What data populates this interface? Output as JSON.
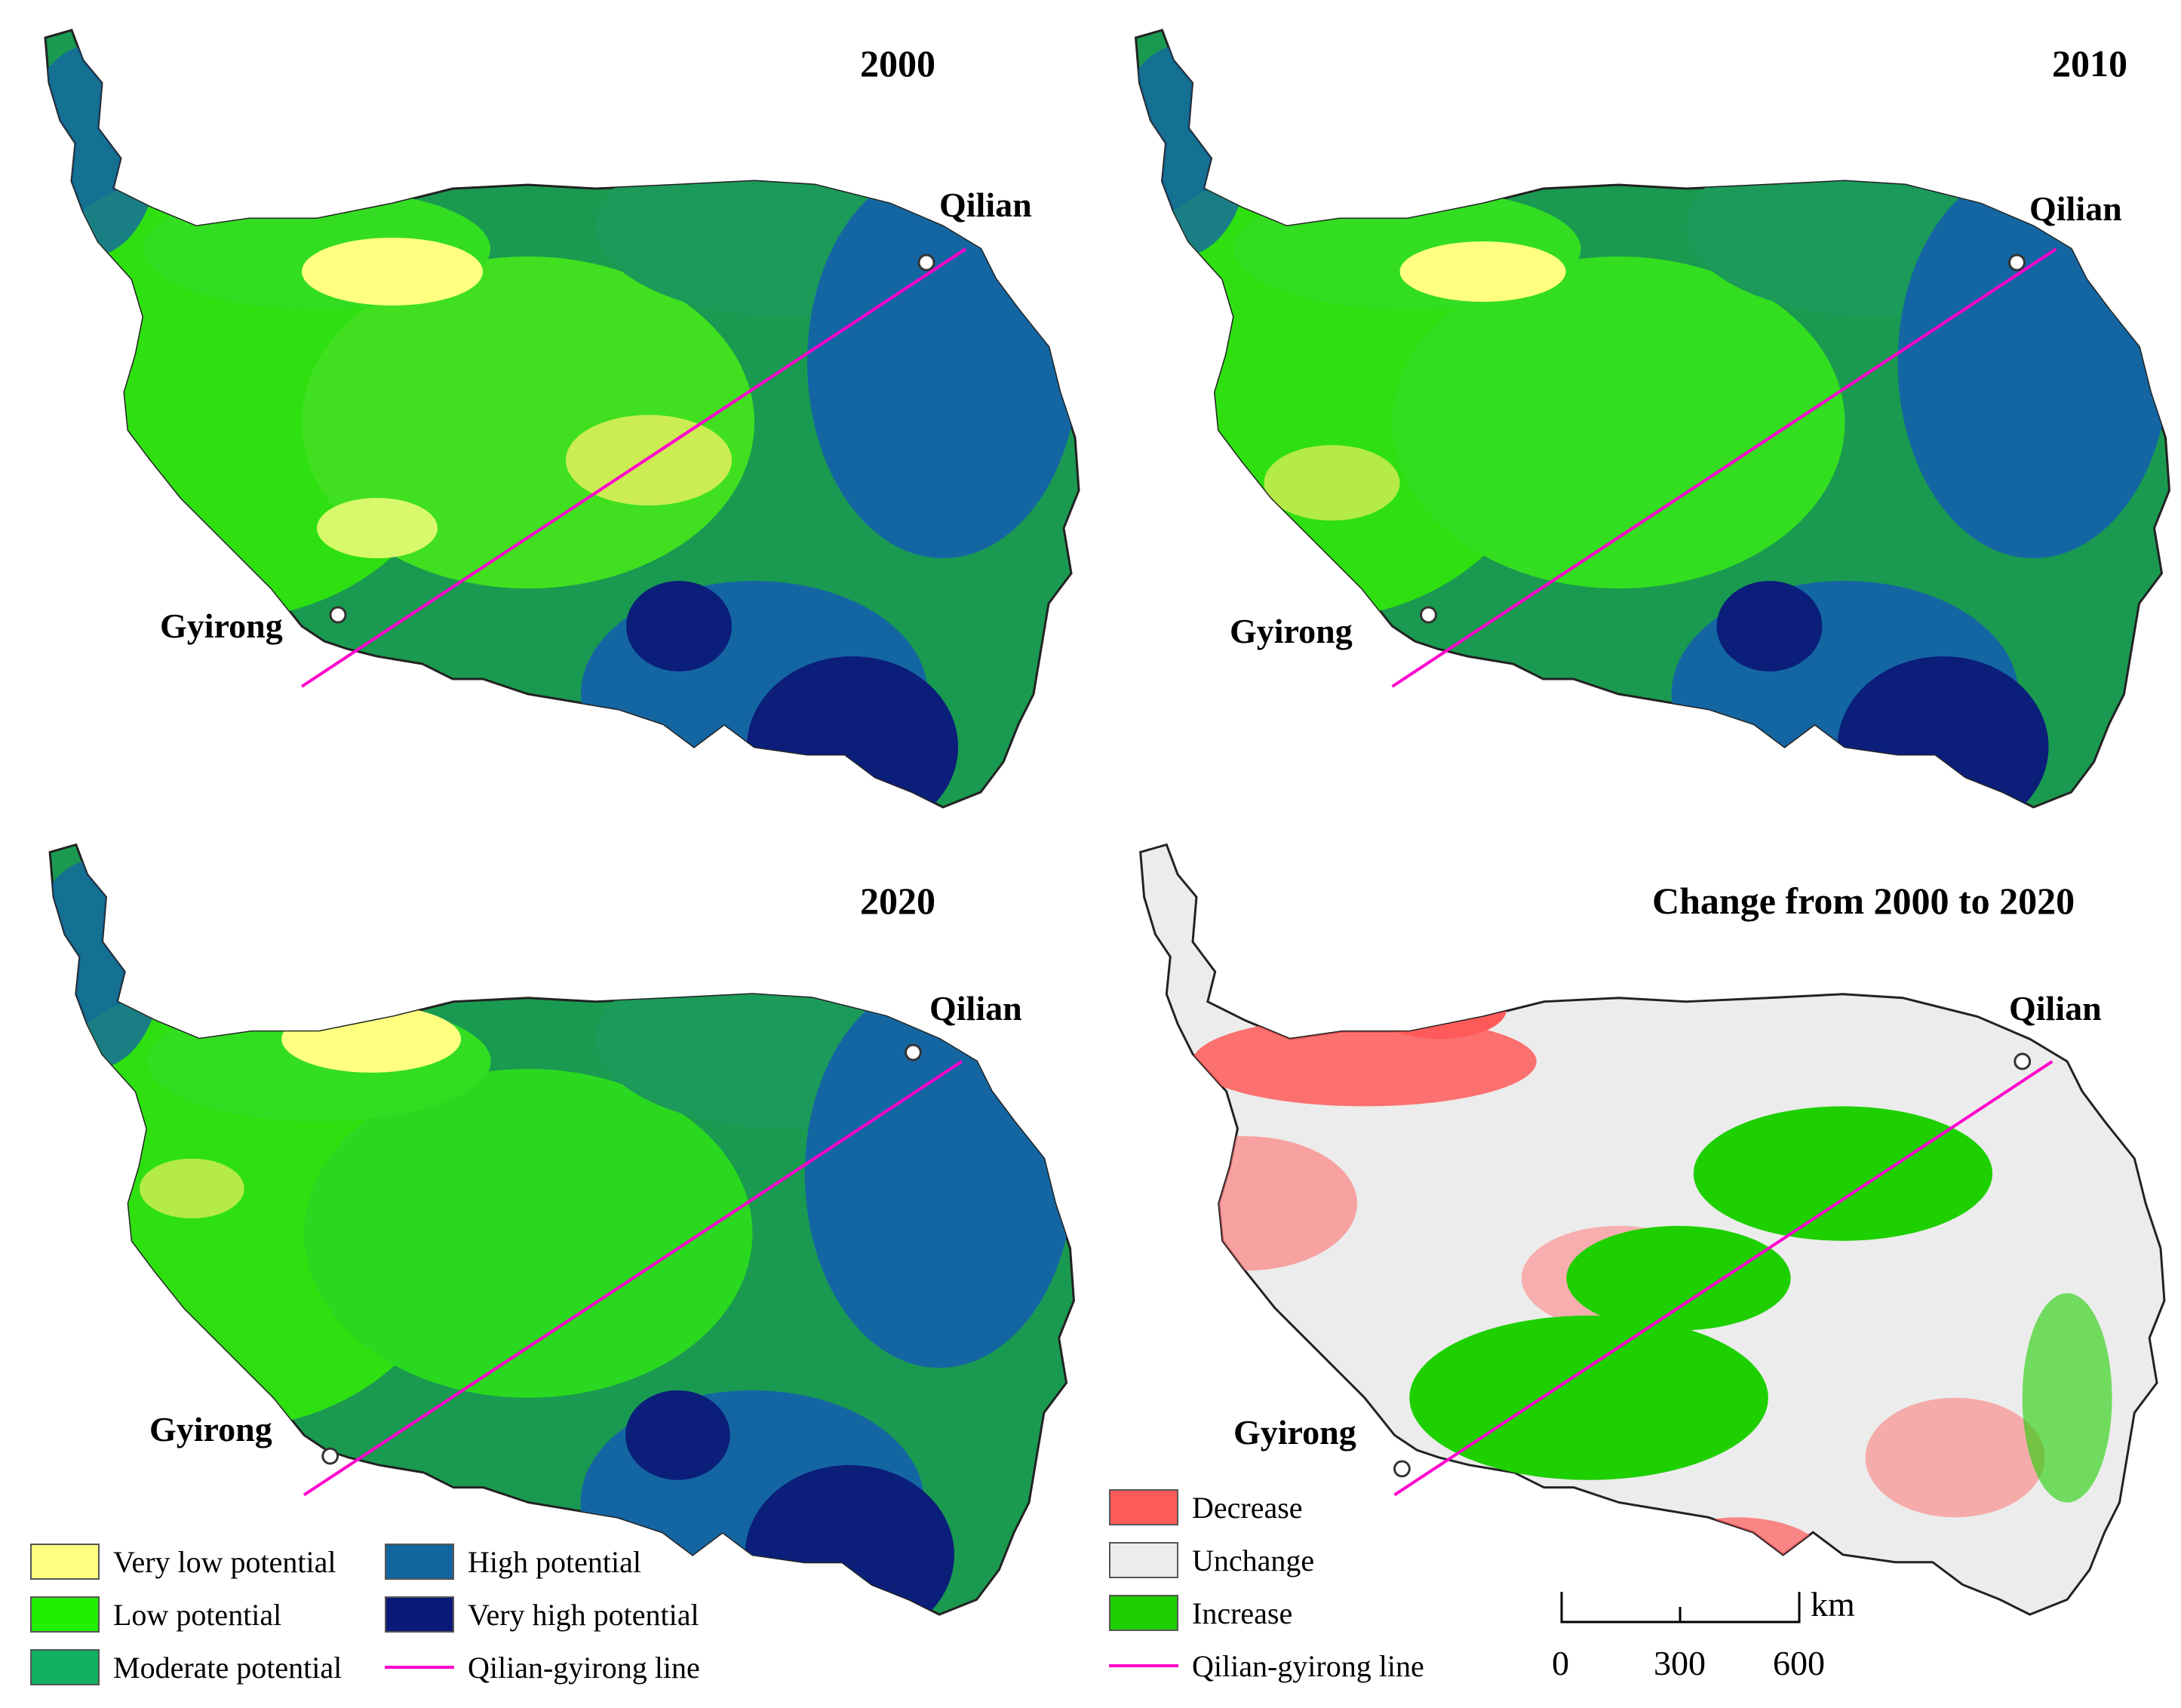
{
  "panels": [
    {
      "id": "p2000",
      "title": "2000",
      "type": "potential"
    },
    {
      "id": "p2010",
      "title": "2010",
      "type": "potential"
    },
    {
      "id": "p2020",
      "title": "2020",
      "type": "potential"
    },
    {
      "id": "pchange",
      "title": "Change from 2000 to 2020",
      "type": "change"
    }
  ],
  "place_labels": {
    "north_east": "Qilian",
    "south_west": "Gyirong"
  },
  "legend_potential": [
    {
      "label": "Very low potential",
      "color": "#ffff80"
    },
    {
      "label": "Low potential",
      "color": "#22ee00"
    },
    {
      "label": "Moderate potential",
      "color": "#10b060"
    },
    {
      "label": "High potential",
      "color": "#1166a0"
    },
    {
      "label": "Very high potential",
      "color": "#0a1a78"
    },
    {
      "label": "Qilian-gyirong line",
      "color": "#ff00cc",
      "line": true
    }
  ],
  "legend_change": [
    {
      "label": "Decrease",
      "color": "#ff5a5a"
    },
    {
      "label": "Unchange",
      "color": "#ececec"
    },
    {
      "label": "Increase",
      "color": "#1ed000"
    },
    {
      "label": "Qilian-gyirong line",
      "color": "#ff00cc",
      "line": true
    }
  ],
  "scale": {
    "unit": "km",
    "ticks": [
      "0",
      "300",
      "600"
    ]
  }
}
